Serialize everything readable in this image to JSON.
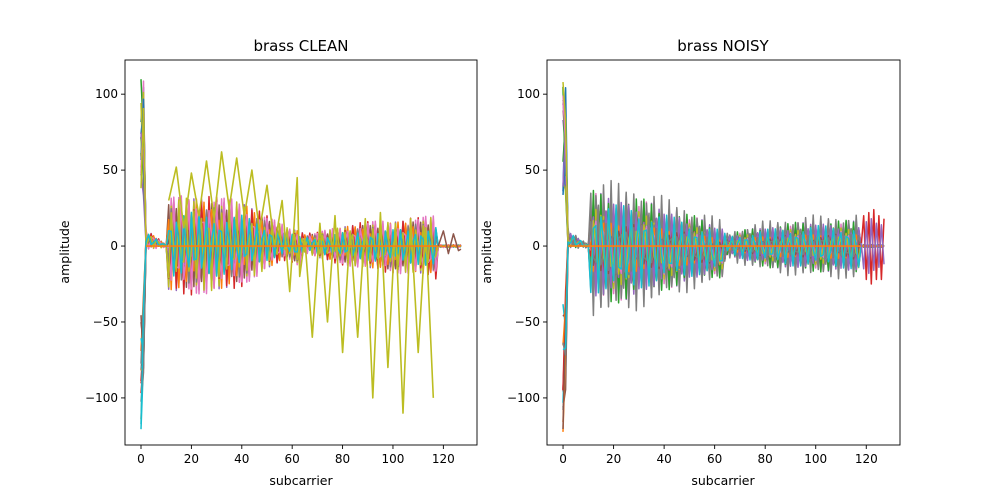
{
  "chart_data": [
    {
      "type": "line",
      "title": "brass CLEAN",
      "xlabel": "subcarrier",
      "ylabel": "amplitude",
      "xlim": [
        -6.35,
        133.35
      ],
      "ylim": [
        -131,
        122.5
      ],
      "xticks": [
        0,
        20,
        40,
        60,
        80,
        100,
        120
      ],
      "yticks": [
        -100,
        -50,
        0,
        50,
        100
      ],
      "xtick_labels": [
        "0",
        "20",
        "40",
        "60",
        "80",
        "100",
        "120"
      ],
      "ytick_labels": [
        "−100",
        "−50",
        "0",
        "50",
        "100"
      ],
      "grid": false,
      "legend": "none",
      "description_of_series": "many overlapping per-frame amplitude traces over subcarriers 0–127; spike near subcarrier 0–1 reaching about ±120, flat near 0 for subcarriers 2–10, dense oscillating band about ±35 from 11–63 narrowing near 60–64, band about ±20 from 65–117, flat at 0 after 118; one olive outlier trace reaching about +65 and −110",
      "envelope": [
        {
          "x": 0,
          "min": -125,
          "max": 112
        },
        {
          "x": 1,
          "min": -95,
          "max": 110
        },
        {
          "x": 2,
          "min": -3,
          "max": 12
        },
        {
          "x": 10,
          "min": -1,
          "max": 1
        },
        {
          "x": 11,
          "min": -35,
          "max": 36
        },
        {
          "x": 20,
          "min": -36,
          "max": 38
        },
        {
          "x": 30,
          "min": -35,
          "max": 36
        },
        {
          "x": 40,
          "min": -30,
          "max": 34
        },
        {
          "x": 50,
          "min": -18,
          "max": 22
        },
        {
          "x": 58,
          "min": -10,
          "max": 14
        },
        {
          "x": 63,
          "min": -15,
          "max": 12
        },
        {
          "x": 65,
          "min": -5,
          "max": 9
        },
        {
          "x": 70,
          "min": -9,
          "max": 10
        },
        {
          "x": 80,
          "min": -14,
          "max": 15
        },
        {
          "x": 90,
          "min": -17,
          "max": 18
        },
        {
          "x": 100,
          "min": -20,
          "max": 19
        },
        {
          "x": 110,
          "min": -21,
          "max": 21
        },
        {
          "x": 117,
          "min": -24,
          "max": 23
        },
        {
          "x": 118,
          "min": -1,
          "max": 1
        },
        {
          "x": 127,
          "min": -1,
          "max": 1
        }
      ],
      "outlier_series": {
        "color": "#bcbd22",
        "x": [
          11,
          14,
          17,
          20,
          23,
          26,
          29,
          32,
          35,
          38,
          41,
          44,
          47,
          50,
          53,
          56,
          59,
          62,
          63,
          65,
          68,
          71,
          74,
          77,
          80,
          83,
          86,
          89,
          92,
          95,
          98,
          101,
          104,
          107,
          110,
          113,
          116
        ],
        "y": [
          30,
          52,
          12,
          48,
          20,
          56,
          18,
          62,
          25,
          58,
          20,
          50,
          10,
          40,
          0,
          30,
          -30,
          45,
          -20,
          5,
          -60,
          15,
          -50,
          20,
          -70,
          10,
          -60,
          18,
          -100,
          22,
          -80,
          15,
          -110,
          18,
          -70,
          12,
          -100
        ]
      },
      "edge_series": [
        {
          "color": "#8c564b",
          "x": [
            118,
            120,
            122,
            124,
            126,
            127
          ],
          "y": [
            0,
            10,
            -5,
            8,
            -3,
            -2
          ]
        }
      ],
      "colors": [
        "#1f77b4",
        "#ff7f0e",
        "#2ca02c",
        "#d62728",
        "#9467bd",
        "#8c564b",
        "#e377c2",
        "#7f7f7f",
        "#bcbd22",
        "#17becf"
      ]
    },
    {
      "type": "line",
      "title": "brass NOISY",
      "xlabel": "subcarrier",
      "ylabel": "amplitude",
      "xlim": [
        -6.35,
        133.35
      ],
      "ylim": [
        -131,
        122.5
      ],
      "xticks": [
        0,
        20,
        40,
        60,
        80,
        100,
        120
      ],
      "yticks": [
        -100,
        -50,
        0,
        50,
        100
      ],
      "xtick_labels": [
        "0",
        "20",
        "40",
        "60",
        "80",
        "100",
        "120"
      ],
      "ytick_labels": [
        "−100",
        "−50",
        "0",
        "50",
        "100"
      ],
      "grid": false,
      "legend": "none",
      "description_of_series": "many overlapping per-frame amplitude traces; spike near subcarrier 0–1 reaching about ±120, flat near 0 for 2–10, dense band from about +48/−50 at subcarrier 11 narrowing to about ±20 near 63, band about ±8 to ±20 from 65–117, red and purple traces oscillating about ±22 from 118–127",
      "envelope": [
        {
          "x": 0,
          "min": -125,
          "max": 112
        },
        {
          "x": 1,
          "min": -95,
          "max": 110
        },
        {
          "x": 2,
          "min": -3,
          "max": 12
        },
        {
          "x": 10,
          "min": -1,
          "max": 1
        },
        {
          "x": 11,
          "min": -50,
          "max": 48
        },
        {
          "x": 20,
          "min": -49,
          "max": 46
        },
        {
          "x": 30,
          "min": -45,
          "max": 42
        },
        {
          "x": 40,
          "min": -38,
          "max": 35
        },
        {
          "x": 50,
          "min": -32,
          "max": 28
        },
        {
          "x": 58,
          "min": -27,
          "max": 22
        },
        {
          "x": 63,
          "min": -26,
          "max": 19
        },
        {
          "x": 65,
          "min": -8,
          "max": 10
        },
        {
          "x": 70,
          "min": -13,
          "max": 13
        },
        {
          "x": 80,
          "min": -18,
          "max": 18
        },
        {
          "x": 90,
          "min": -21,
          "max": 20
        },
        {
          "x": 100,
          "min": -22,
          "max": 22
        },
        {
          "x": 110,
          "min": -23,
          "max": 22
        },
        {
          "x": 117,
          "min": -25,
          "max": 23
        },
        {
          "x": 118,
          "min": -1,
          "max": 1
        },
        {
          "x": 127,
          "min": -1,
          "max": 1
        }
      ],
      "outlier_series": null,
      "edge_series": [
        {
          "color": "#d62728",
          "x": [
            118,
            119,
            120,
            121,
            122,
            123,
            124,
            125,
            126,
            127
          ],
          "y": [
            0,
            20,
            -22,
            22,
            -25,
            24,
            -22,
            20,
            -22,
            18
          ]
        },
        {
          "color": "#9467bd",
          "x": [
            118,
            119,
            120,
            121,
            122,
            123,
            124,
            125,
            126,
            127
          ],
          "y": [
            2,
            -15,
            16,
            -18,
            18,
            -16,
            15,
            -14,
            14,
            -12
          ]
        }
      ],
      "colors": [
        "#1f77b4",
        "#ff7f0e",
        "#2ca02c",
        "#d62728",
        "#9467bd",
        "#8c564b",
        "#e377c2",
        "#7f7f7f",
        "#bcbd22",
        "#17becf"
      ]
    }
  ]
}
